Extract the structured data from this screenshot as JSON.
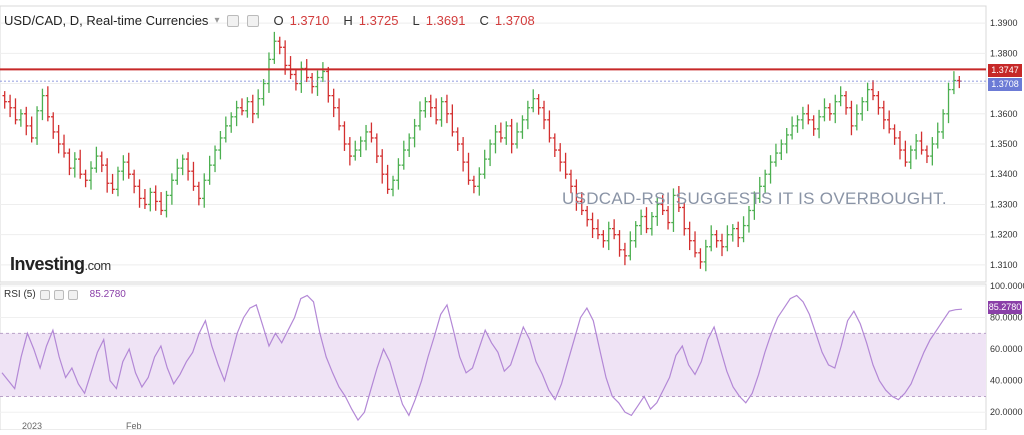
{
  "header": {
    "title": "USD/CAD, D, Real-time Currencies",
    "open_key": "O",
    "open": "1.3710",
    "high_key": "H",
    "high": "1.3725",
    "low_key": "L",
    "low": "1.3691",
    "close_key": "C",
    "close": "1.3708"
  },
  "logo": {
    "main": "Investing",
    "suffix": ".com"
  },
  "annotation": "USDCAD-RSI SUGGESTS IT IS OVERBOUGHT.",
  "colors": {
    "up": "#4caf50",
    "down": "#d32f2f",
    "resistance": "#c62828",
    "price_tag": "#6c7bd6",
    "rsi_line": "#b388d6",
    "rsi_band": "#efe3f5"
  },
  "resistance_label": "1.3747",
  "price_label": "1.3708",
  "rsi": {
    "label": "RSI (5)",
    "value_label": "85.2780"
  },
  "x_labels": [
    "2023",
    "Feb"
  ],
  "chart_data": [
    {
      "type": "ohlc",
      "title": "USD/CAD, D, Real-time Currencies",
      "ylim": [
        1.305,
        1.395
      ],
      "y_ticks": [
        "1.3100",
        "1.3200",
        "1.3300",
        "1.3400",
        "1.3500",
        "1.3600",
        "1.3700",
        "1.3800",
        "1.3900"
      ],
      "resistance": 1.3747,
      "last_close": 1.3708,
      "close": [
        1.364,
        1.362,
        1.358,
        1.36,
        1.356,
        1.352,
        1.361,
        1.366,
        1.359,
        1.354,
        1.35,
        1.347,
        1.342,
        1.345,
        1.34,
        1.338,
        1.342,
        1.346,
        1.343,
        1.337,
        1.335,
        1.341,
        1.344,
        1.34,
        1.336,
        1.332,
        1.33,
        1.334,
        1.331,
        1.328,
        1.333,
        1.338,
        1.342,
        1.345,
        1.341,
        1.336,
        1.332,
        1.338,
        1.343,
        1.348,
        1.352,
        1.356,
        1.359,
        1.362,
        1.361,
        1.364,
        1.36,
        1.365,
        1.37,
        1.378,
        1.384,
        1.382,
        1.376,
        1.373,
        1.37,
        1.375,
        1.372,
        1.369,
        1.372,
        1.374,
        1.366,
        1.362,
        1.356,
        1.35,
        1.346,
        1.348,
        1.351,
        1.354,
        1.352,
        1.346,
        1.34,
        1.335,
        1.338,
        1.343,
        1.348,
        1.352,
        1.356,
        1.361,
        1.364,
        1.362,
        1.358,
        1.364,
        1.36,
        1.354,
        1.35,
        1.344,
        1.338,
        1.336,
        1.34,
        1.345,
        1.35,
        1.354,
        1.352,
        1.356,
        1.35,
        1.354,
        1.358,
        1.362,
        1.365,
        1.362,
        1.358,
        1.352,
        1.348,
        1.344,
        1.34,
        1.336,
        1.331,
        1.328,
        1.325,
        1.322,
        1.32,
        1.318,
        1.322,
        1.32,
        1.315,
        1.313,
        1.318,
        1.323,
        1.326,
        1.322,
        1.326,
        1.33,
        1.328,
        1.324,
        1.333,
        1.329,
        1.322,
        1.318,
        1.314,
        1.311,
        1.316,
        1.32,
        1.318,
        1.316,
        1.32,
        1.322,
        1.319,
        1.323,
        1.328,
        1.332,
        1.336,
        1.34,
        1.344,
        1.347,
        1.35,
        1.353,
        1.356,
        1.358,
        1.36,
        1.358,
        1.355,
        1.359,
        1.362,
        1.36,
        1.364,
        1.366,
        1.362,
        1.356,
        1.36,
        1.364,
        1.368,
        1.366,
        1.362,
        1.358,
        1.355,
        1.352,
        1.348,
        1.344,
        1.348,
        1.351,
        1.348,
        1.346,
        1.35,
        1.354,
        1.36,
        1.368,
        1.371,
        1.3708
      ]
    },
    {
      "type": "line",
      "series": [
        {
          "name": "RSI (5)",
          "values": [
            45,
            40,
            35,
            55,
            70,
            60,
            48,
            62,
            72,
            55,
            42,
            48,
            38,
            32,
            45,
            58,
            66,
            40,
            35,
            52,
            60,
            45,
            36,
            42,
            55,
            62,
            48,
            38,
            44,
            52,
            58,
            70,
            78,
            62,
            50,
            40,
            55,
            70,
            80,
            86,
            88,
            75,
            62,
            70,
            64,
            72,
            80,
            92,
            94,
            90,
            70,
            55,
            45,
            36,
            30,
            22,
            15,
            20,
            34,
            48,
            60,
            52,
            38,
            25,
            18,
            28,
            40,
            55,
            68,
            82,
            88,
            72,
            55,
            45,
            48,
            60,
            72,
            64,
            58,
            46,
            50,
            62,
            74,
            66,
            52,
            44,
            34,
            28,
            38,
            52,
            66,
            80,
            86,
            78,
            60,
            42,
            30,
            26,
            20,
            18,
            24,
            30,
            22,
            26,
            34,
            42,
            56,
            62,
            50,
            44,
            52,
            66,
            74,
            60,
            46,
            36,
            30,
            26,
            32,
            44,
            58,
            70,
            80,
            86,
            92,
            94,
            90,
            82,
            70,
            58,
            50,
            48,
            62,
            78,
            84,
            76,
            64,
            50,
            40,
            34,
            30,
            28,
            32,
            38,
            48,
            58,
            66,
            72,
            78,
            84,
            85,
            85.278
          ]
        }
      ],
      "ylim": [
        10,
        100
      ],
      "y_ticks": [
        "20.0000",
        "40.0000",
        "60.0000",
        "80.0000",
        "100.0000"
      ],
      "bands": [
        30,
        70
      ]
    }
  ]
}
